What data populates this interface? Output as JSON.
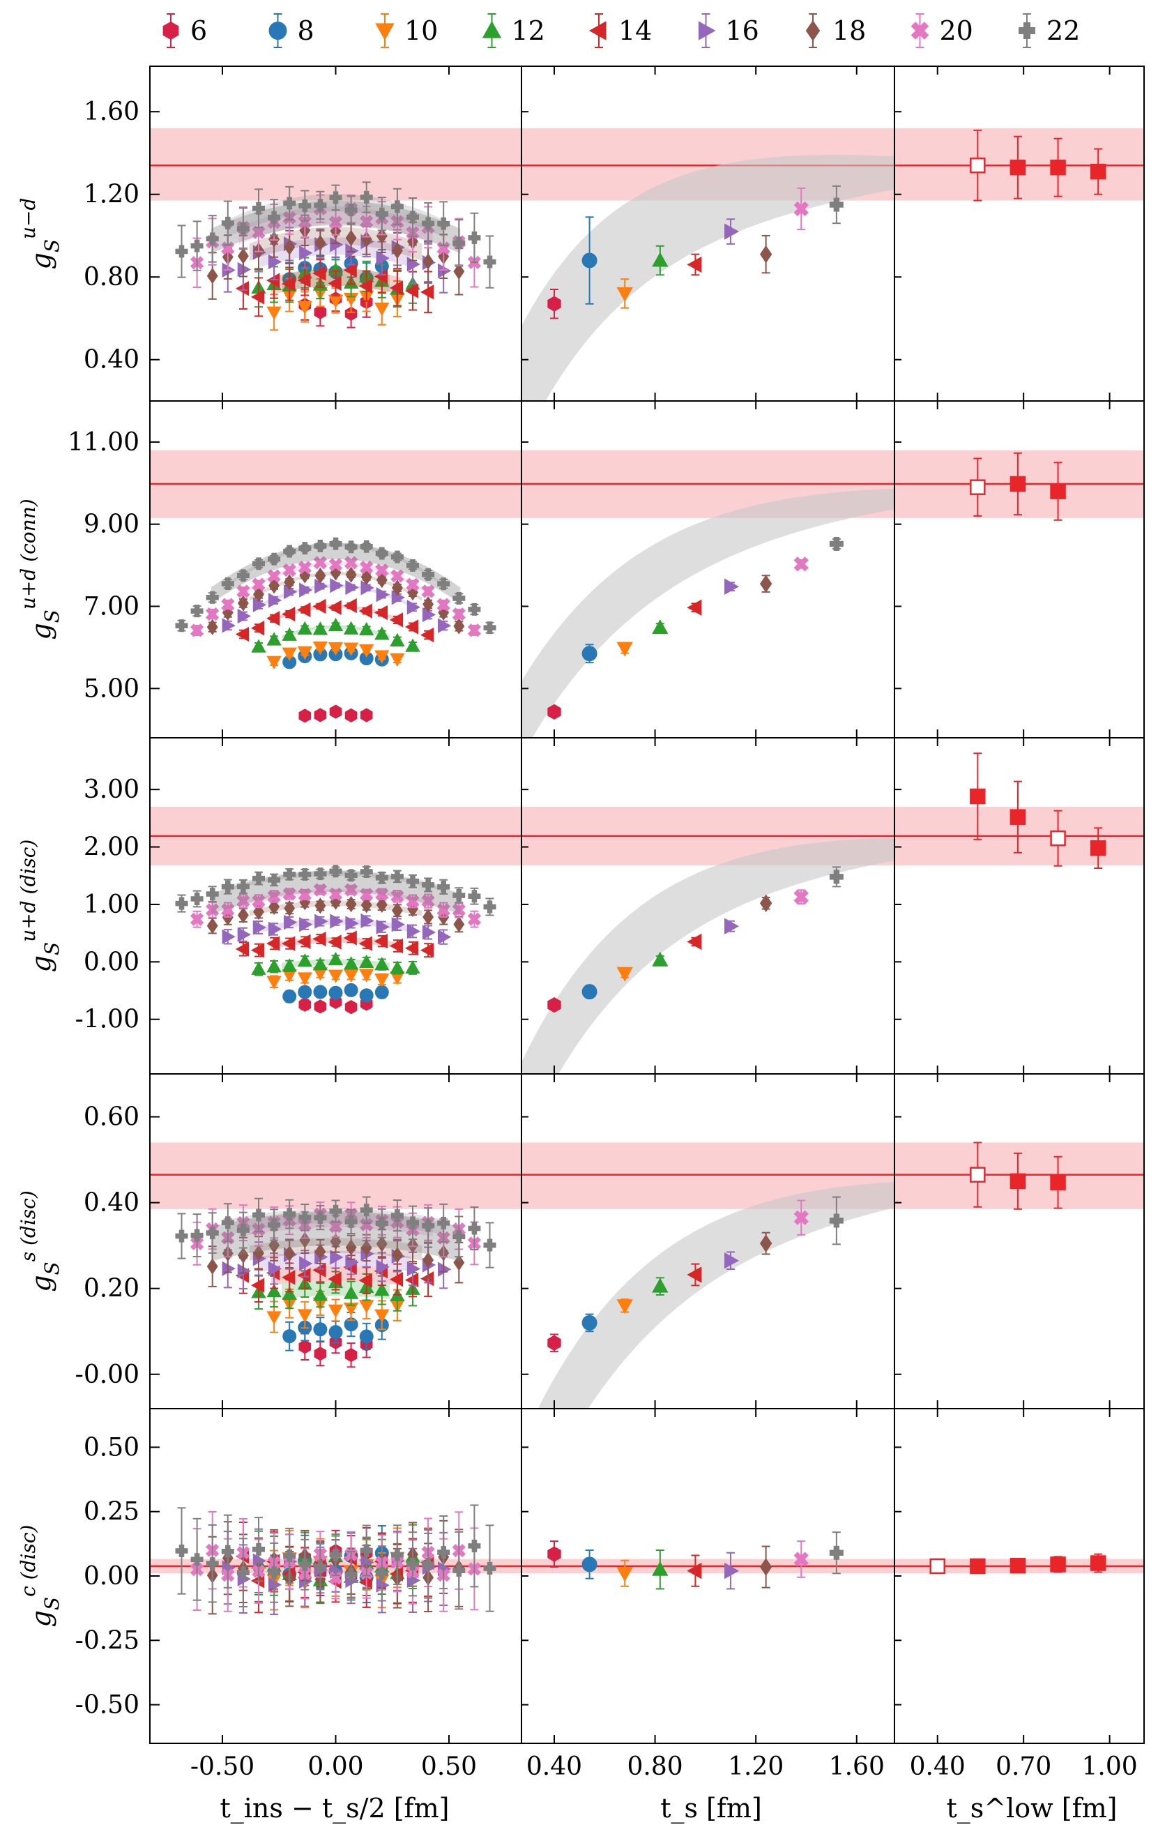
{
  "colors": {
    "6": "#d62045",
    "8": "#2878b5",
    "10": "#ff7f0e",
    "12": "#2ca02c",
    "14": "#d62728",
    "16": "#9467bd",
    "18": "#8c564b",
    "20": "#e377c2",
    "22": "#7f7f7f",
    "fit_line": "#e8262a",
    "fit_band": "#f9c8cb",
    "gray_band": "#c8c8c8"
  },
  "legend": {
    "entries": [
      {
        "label": "6",
        "marker": "hexagon",
        "color_key": "6"
      },
      {
        "label": "8",
        "marker": "circle",
        "color_key": "8"
      },
      {
        "label": "10",
        "marker": "triangle-down",
        "color_key": "10"
      },
      {
        "label": "12",
        "marker": "triangle-up",
        "color_key": "12"
      },
      {
        "label": "14",
        "marker": "triangle-left",
        "color_key": "14"
      },
      {
        "label": "16",
        "marker": "triangle-right",
        "color_key": "16"
      },
      {
        "label": "18",
        "marker": "diamond",
        "color_key": "18"
      },
      {
        "label": "20",
        "marker": "x-thick",
        "color_key": "20"
      },
      {
        "label": "22",
        "marker": "plus-thick",
        "color_key": "22"
      }
    ]
  },
  "xlabels": {
    "left": "t_ins − t_s/2 [fm]",
    "mid": "t_s [fm]",
    "right": "t_s^low [fm]"
  },
  "xticks": {
    "left": [
      "-0.50",
      "0.00",
      "0.50"
    ],
    "mid": [
      "0.40",
      "0.80",
      "1.20",
      "1.60"
    ],
    "right": [
      "0.40",
      "0.70",
      "1.00"
    ]
  },
  "xvalues": {
    "left_ticks": [
      -0.5,
      0.0,
      0.5
    ],
    "left_range": [
      -0.82,
      0.82
    ],
    "mid_ticks": [
      0.4,
      0.8,
      1.2,
      1.6
    ],
    "mid_range": [
      0.27,
      1.75
    ],
    "right_ticks": [
      0.4,
      0.7,
      1.0
    ],
    "right_range": [
      0.25,
      1.12
    ]
  },
  "rows": [
    {
      "ylabel_main": "g",
      "ylabel_sub": "S",
      "ylabel_sup": "u−d",
      "ylim": [
        0.2,
        1.82
      ],
      "yticks": [
        0.4,
        0.8,
        1.2,
        1.6
      ],
      "ytick_labels": [
        "0.40",
        "0.80",
        "1.20",
        "1.60"
      ],
      "fit": {
        "value": 1.34,
        "low": 1.17,
        "high": 1.52
      },
      "ts_values": [
        0.67,
        0.88,
        0.72,
        0.88,
        0.86,
        1.02,
        0.91,
        1.13,
        1.15
      ],
      "ts_errors": [
        0.07,
        0.21,
        0.07,
        0.07,
        0.05,
        0.06,
        0.09,
        0.1,
        0.09
      ],
      "ts_curve": {
        "limit": 1.34,
        "amp": 2.2,
        "rate": 1.9
      },
      "ts_curve_err": 0.08,
      "tlow_values": [
        1.34,
        1.33,
        1.33,
        1.31
      ],
      "tlow_errors": [
        0.17,
        0.15,
        0.14,
        0.11
      ],
      "tlow_open_index": 0,
      "plateau_base": [
        0.66,
        0.84,
        0.7,
        0.8,
        0.8,
        0.95,
        1.0,
        1.1,
        1.16
      ],
      "plateau_curv": 0.55,
      "plateau_err": 0.06,
      "gray_arc": {
        "center": 1.11,
        "curv": 0.45,
        "half": 0.06
      }
    },
    {
      "ylabel_main": "g",
      "ylabel_sub": "S",
      "ylabel_sup": "u+d (conn)",
      "ylim": [
        3.8,
        12.0
      ],
      "yticks": [
        5.0,
        7.0,
        9.0,
        11.0
      ],
      "ytick_labels": [
        "5.00",
        "7.00",
        "9.00",
        "11.00"
      ],
      "fit": {
        "value": 9.98,
        "low": 9.15,
        "high": 10.8
      },
      "ts_values": [
        4.43,
        5.85,
        5.98,
        6.48,
        6.97,
        7.48,
        7.55,
        8.03,
        8.52
      ],
      "ts_errors": [
        0.08,
        0.22,
        0.12,
        0.1,
        0.1,
        0.1,
        0.2,
        0.1,
        0.12
      ],
      "ts_curve": {
        "limit": 9.98,
        "amp": 10.5,
        "rate": 1.55
      },
      "ts_curve_err": 0.25,
      "tlow_values": [
        9.9,
        9.98,
        9.8
      ],
      "tlow_errors": [
        0.7,
        0.75,
        0.7
      ],
      "tlow_open_index": 0,
      "plateau_base": [
        4.4,
        5.85,
        6.0,
        6.5,
        7.0,
        7.5,
        7.8,
        8.05,
        8.5
      ],
      "plateau_curv": 4.3,
      "plateau_err": 0.06,
      "gray_arc": {
        "center": 8.35,
        "curv": 3.6,
        "half": 0.2
      }
    },
    {
      "ylabel_main": "g",
      "ylabel_sub": "S",
      "ylabel_sup": "u+d (disc)",
      "ylim": [
        -1.95,
        3.9
      ],
      "yticks": [
        -1.0,
        0.0,
        1.0,
        2.0,
        3.0
      ],
      "ytick_labels": [
        "-1.00",
        "0.00",
        "1.00",
        "2.00",
        "3.00"
      ],
      "fit": {
        "value": 2.19,
        "low": 1.68,
        "high": 2.7
      },
      "ts_values": [
        -0.75,
        -0.52,
        -0.2,
        0.03,
        0.35,
        0.62,
        1.02,
        1.13,
        1.48
      ],
      "ts_errors": [
        0.06,
        0.06,
        0.07,
        0.07,
        0.07,
        0.09,
        0.1,
        0.12,
        0.17
      ],
      "ts_curve": {
        "limit": 2.19,
        "amp": 9.0,
        "rate": 1.7
      },
      "ts_curve_err": 0.2,
      "tlow_values": [
        2.88,
        2.52,
        2.15,
        1.98
      ],
      "tlow_errors": [
        0.75,
        0.62,
        0.48,
        0.35
      ],
      "tlow_open_index": 2,
      "plateau_base": [
        -0.74,
        -0.52,
        -0.22,
        0.0,
        0.38,
        0.7,
        1.02,
        1.22,
        1.55
      ],
      "plateau_curv": 1.2,
      "plateau_err": 0.07,
      "gray_arc": {
        "center": 1.4,
        "curv": 1.3,
        "half": 0.18
      }
    },
    {
      "ylabel_main": "g",
      "ylabel_sub": "S",
      "ylabel_sup": "s (disc)",
      "ylim": [
        -0.08,
        0.7
      ],
      "yticks": [
        0.0,
        0.2,
        0.4,
        0.6
      ],
      "ytick_labels": [
        "-0.00",
        "0.20",
        "0.40",
        "0.60"
      ],
      "fit": {
        "value": 0.465,
        "low": 0.385,
        "high": 0.54
      },
      "ts_values": [
        0.073,
        0.12,
        0.16,
        0.205,
        0.232,
        0.265,
        0.305,
        0.365,
        0.358
      ],
      "ts_errors": [
        0.02,
        0.02,
        0.015,
        0.02,
        0.025,
        0.02,
        0.025,
        0.04,
        0.055
      ],
      "ts_curve": {
        "limit": 0.465,
        "amp": 1.35,
        "rate": 1.55
      },
      "ts_curve_err": 0.03,
      "tlow_values": [
        0.465,
        0.45,
        0.447
      ],
      "tlow_errors": [
        0.075,
        0.065,
        0.06
      ],
      "tlow_open_index": 0,
      "plateau_base": [
        0.06,
        0.105,
        0.155,
        0.2,
        0.235,
        0.27,
        0.3,
        0.36,
        0.37
      ],
      "plateau_curv": 0.12,
      "plateau_err": 0.025,
      "gray_arc": {
        "center": 0.34,
        "curv": 0.12,
        "half": 0.04
      }
    },
    {
      "ylabel_main": "g",
      "ylabel_sub": "S",
      "ylabel_sup": "c (disc)",
      "ylim": [
        -0.65,
        0.65
      ],
      "yticks": [
        -0.5,
        -0.25,
        0.0,
        0.25,
        0.5
      ],
      "ytick_labels": [
        "-0.50",
        "-0.25",
        "0.00",
        "0.25",
        "0.50"
      ],
      "fit": {
        "value": 0.038,
        "low": 0.01,
        "high": 0.066
      },
      "ts_values": [
        0.085,
        0.045,
        0.01,
        0.025,
        0.02,
        0.02,
        0.035,
        0.065,
        0.09
      ],
      "ts_errors": [
        0.05,
        0.055,
        0.05,
        0.075,
        0.06,
        0.07,
        0.08,
        0.07,
        0.08
      ],
      "ts_curve": {
        "limit": 0.038,
        "amp": 0.0,
        "rate": 1.0
      },
      "ts_curve_err": 0.0,
      "tlow_values": [
        0.038,
        0.038,
        0.04,
        0.045,
        0.05
      ],
      "tlow_errors": [
        0.0,
        0.02,
        0.025,
        0.03,
        0.035
      ],
      "tlow_open_index": 0,
      "plateau_base": [
        0.05,
        0.04,
        0.02,
        0.03,
        0.02,
        0.01,
        0.03,
        0.04,
        0.05
      ],
      "plateau_curv": -0.05,
      "plateau_err": 0.08,
      "gray_arc": null
    }
  ],
  "ts_positions": [
    0.4,
    0.54,
    0.68,
    0.82,
    0.96,
    1.1,
    1.24,
    1.38,
    1.52
  ],
  "tlow_positions_4": [
    0.54,
    0.68,
    0.82,
    0.96
  ],
  "tlow_positions_3": [
    0.54,
    0.68,
    0.82
  ],
  "tlow_positions_5": [
    0.4,
    0.54,
    0.68,
    0.82,
    0.96
  ],
  "chart_data": {
    "type": "scatter",
    "title": "",
    "description_legend": [
      "6",
      "8",
      "10",
      "12",
      "14",
      "16",
      "18",
      "20",
      "22"
    ],
    "xlabel": [
      "t_ins − t_s/2 [fm]",
      "t_s [fm]",
      "t_s^low [fm]"
    ],
    "panels": [
      {
        "ylabel": "g_S^{u−d}",
        "ylim": [
          0.2,
          1.82
        ],
        "fit": 1.34,
        "fit_band": [
          1.17,
          1.52
        ],
        "ts": [
          0.4,
          0.54,
          0.68,
          0.82,
          0.96,
          1.1,
          1.24,
          1.38,
          1.52
        ],
        "values": [
          0.67,
          0.88,
          0.72,
          0.88,
          0.86,
          1.02,
          0.91,
          1.13,
          1.15
        ],
        "tlow_x": [
          0.54,
          0.68,
          0.82,
          0.96
        ],
        "tlow_y": [
          1.34,
          1.33,
          1.33,
          1.31
        ]
      },
      {
        "ylabel": "g_S^{u+d (conn)}",
        "ylim": [
          3.8,
          12.0
        ],
        "fit": 9.98,
        "fit_band": [
          9.15,
          10.8
        ],
        "ts": [
          0.4,
          0.54,
          0.68,
          0.82,
          0.96,
          1.1,
          1.24,
          1.38,
          1.52
        ],
        "values": [
          4.43,
          5.85,
          5.98,
          6.48,
          6.97,
          7.48,
          7.55,
          8.03,
          8.52
        ],
        "tlow_x": [
          0.54,
          0.68,
          0.82
        ],
        "tlow_y": [
          9.9,
          9.98,
          9.8
        ]
      },
      {
        "ylabel": "g_S^{u+d (disc)}",
        "ylim": [
          -1.95,
          3.9
        ],
        "fit": 2.19,
        "fit_band": [
          1.68,
          2.7
        ],
        "ts": [
          0.4,
          0.54,
          0.68,
          0.82,
          0.96,
          1.1,
          1.24,
          1.38,
          1.52
        ],
        "values": [
          -0.75,
          -0.52,
          -0.2,
          0.03,
          0.35,
          0.62,
          1.02,
          1.13,
          1.48
        ],
        "tlow_x": [
          0.54,
          0.68,
          0.82,
          0.96
        ],
        "tlow_y": [
          2.88,
          2.52,
          2.15,
          1.98
        ]
      },
      {
        "ylabel": "g_S^{s (disc)}",
        "ylim": [
          -0.08,
          0.7
        ],
        "fit": 0.465,
        "fit_band": [
          0.385,
          0.54
        ],
        "ts": [
          0.4,
          0.54,
          0.68,
          0.82,
          0.96,
          1.1,
          1.24,
          1.38,
          1.52
        ],
        "values": [
          0.073,
          0.12,
          0.16,
          0.205,
          0.232,
          0.265,
          0.305,
          0.365,
          0.358
        ],
        "tlow_x": [
          0.54,
          0.68,
          0.82
        ],
        "tlow_y": [
          0.465,
          0.45,
          0.447
        ]
      },
      {
        "ylabel": "g_S^{c (disc)}",
        "ylim": [
          -0.65,
          0.65
        ],
        "fit": 0.038,
        "fit_band": [
          0.01,
          0.066
        ],
        "ts": [
          0.4,
          0.54,
          0.68,
          0.82,
          0.96,
          1.1,
          1.24,
          1.38,
          1.52
        ],
        "values": [
          0.085,
          0.045,
          0.01,
          0.025,
          0.02,
          0.02,
          0.035,
          0.065,
          0.09
        ],
        "tlow_x": [
          0.4,
          0.54,
          0.68,
          0.82,
          0.96
        ],
        "tlow_y": [
          0.038,
          0.038,
          0.04,
          0.045,
          0.05
        ]
      }
    ]
  }
}
